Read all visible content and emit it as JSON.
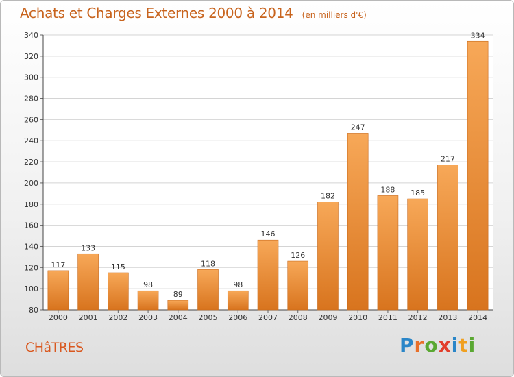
{
  "title": "Achats et Charges Externes 2000 à 2014",
  "unit": "(en milliers d'€)",
  "commune": "CHâTRES",
  "logo": {
    "text": "Proxiti",
    "letter_colors": [
      "#2a86c8",
      "#e8702a",
      "#5aa832",
      "#e23e2b",
      "#2a86c8",
      "#f0a020",
      "#5aa832"
    ]
  },
  "colors": {
    "bar_top": "#f7a858",
    "bar_bottom": "#d8741e",
    "text": "#333333",
    "title": "#c8641e",
    "commune": "#d9581f"
  },
  "chart_data": {
    "type": "bar",
    "categories": [
      "2000",
      "2001",
      "2002",
      "2003",
      "2004",
      "2005",
      "2006",
      "2007",
      "2008",
      "2009",
      "2010",
      "2011",
      "2012",
      "2013",
      "2014"
    ],
    "values": [
      117,
      133,
      115,
      98,
      89,
      118,
      98,
      146,
      126,
      182,
      247,
      188,
      185,
      217,
      334
    ],
    "data_labels": [
      "117",
      "133",
      "115",
      "98",
      "89",
      "118",
      "98",
      "146",
      "126",
      "182",
      "247",
      "188",
      "185",
      "217",
      "334"
    ],
    "ylim": [
      80,
      340
    ],
    "yticks": [
      80,
      100,
      120,
      140,
      160,
      180,
      200,
      220,
      240,
      260,
      280,
      300,
      320,
      340
    ],
    "grid": true
  }
}
